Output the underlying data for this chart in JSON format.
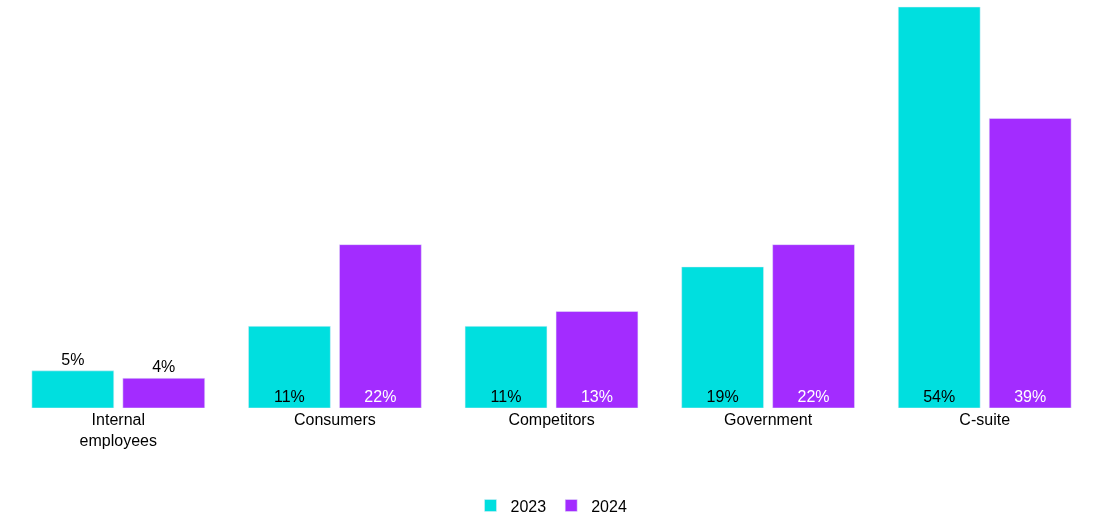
{
  "chart_data": {
    "type": "bar",
    "categories": [
      "Internal employees",
      "Consumers",
      "Competitors",
      "Government",
      "C-suite"
    ],
    "series": [
      {
        "name": "2023",
        "color": "#00dfdf",
        "values": [
          5,
          11,
          11,
          19,
          54
        ],
        "value_labels": [
          "5%",
          "11%",
          "11%",
          "19%",
          "54%"
        ]
      },
      {
        "name": "2024",
        "color": "#a32cff",
        "values": [
          4,
          22,
          13,
          22,
          39
        ],
        "value_labels": [
          "4%",
          "22%",
          "13%",
          "22%",
          "39%"
        ]
      }
    ],
    "legend": "bottom"
  }
}
